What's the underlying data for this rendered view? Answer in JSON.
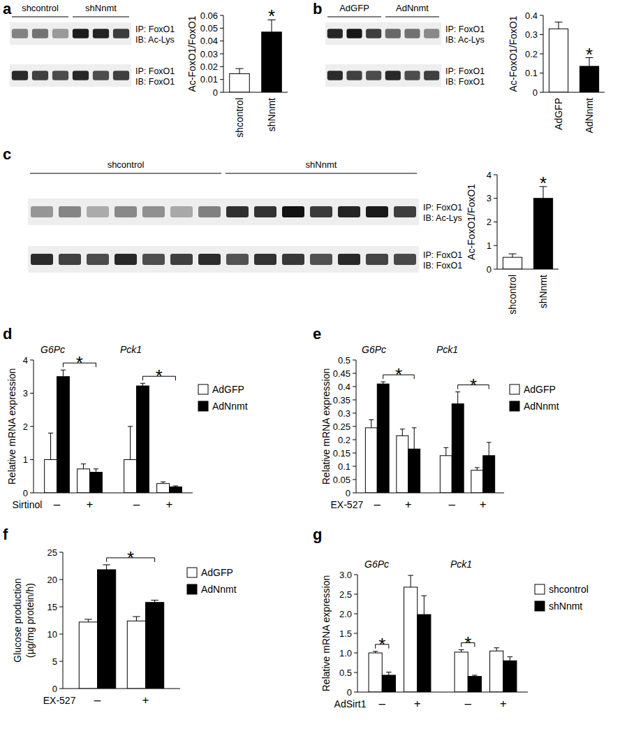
{
  "chart_data": [
    {
      "panel": "a",
      "type": "bar",
      "categories": [
        "shcontrol",
        "shNnmt"
      ],
      "values": [
        0.0145,
        0.047
      ],
      "errors": [
        0.004,
        0.0095
      ],
      "colors": [
        "#ffffff",
        "#000000"
      ],
      "ylim": [
        0,
        0.06
      ],
      "yticks": [
        0,
        0.01,
        0.02,
        0.03,
        0.04,
        0.05,
        0.06
      ],
      "y_label": "Ac-FoxO1/FoxO1",
      "annotations": [
        {
          "text": "*",
          "index": 1
        }
      ],
      "blot": {
        "groups": [
          {
            "label": "shcontrol",
            "lanes": 3
          },
          {
            "label": "shNnmt",
            "lanes": 3
          }
        ],
        "rows": [
          [
            "IP: FoxO1",
            "IB: Ac-Lys"
          ],
          [
            "IP: FoxO1",
            "IB: FoxO1"
          ]
        ]
      }
    },
    {
      "panel": "b",
      "type": "bar",
      "categories": [
        "AdGFP",
        "AdNnmt"
      ],
      "values": [
        0.33,
        0.135
      ],
      "errors": [
        0.035,
        0.045
      ],
      "colors": [
        "#ffffff",
        "#000000"
      ],
      "ylim": [
        0,
        0.4
      ],
      "yticks": [
        0,
        0.1,
        0.2,
        0.3,
        0.4
      ],
      "y_label": "Ac-FoxO1/FoxO1",
      "annotations": [
        {
          "text": "*",
          "index": 1
        }
      ],
      "blot": {
        "groups": [
          {
            "label": "AdGFP",
            "lanes": 3
          },
          {
            "label": "AdNnmt",
            "lanes": 3
          }
        ],
        "rows": [
          [
            "IP: FoxO1",
            "IB: Ac-Lys"
          ],
          [
            "IP: FoxO1",
            "IB: FoxO1"
          ]
        ]
      }
    },
    {
      "panel": "c",
      "type": "bar",
      "categories": [
        "shcontrol",
        "shNnmt"
      ],
      "values": [
        0.5,
        3.0
      ],
      "errors": [
        0.15,
        0.5
      ],
      "colors": [
        "#ffffff",
        "#000000"
      ],
      "ylim": [
        0,
        4
      ],
      "yticks": [
        0,
        1,
        2,
        3,
        4
      ],
      "y_label": "Ac-FoxO1/FoxO1",
      "annotations": [
        {
          "text": "*",
          "index": 1
        }
      ],
      "blot": {
        "groups": [
          {
            "label": "shcontrol",
            "lanes": 7
          },
          {
            "label": "shNnmt",
            "lanes": 7
          }
        ],
        "rows": [
          [
            "IP: FoxO1",
            "IB: Ac-Lys"
          ],
          [
            "IP: FoxO1",
            "IB: FoxO1"
          ]
        ]
      }
    },
    {
      "panel": "d",
      "type": "bar",
      "groups": [
        "G6Pc",
        "Pck1"
      ],
      "categories": [
        "–",
        "+",
        "–",
        "+"
      ],
      "x_label": "Sirtinol",
      "series": [
        {
          "name": "AdGFP",
          "color": "#ffffff",
          "values": [
            1.0,
            0.72,
            1.0,
            0.28
          ],
          "errors": [
            0.8,
            0.15,
            1.0,
            0.05
          ]
        },
        {
          "name": "AdNnmt",
          "color": "#000000",
          "values": [
            3.5,
            0.62,
            3.22,
            0.18
          ],
          "errors": [
            0.2,
            0.1,
            0.08,
            0.03
          ]
        }
      ],
      "ylim": [
        0,
        4
      ],
      "yticks": [
        0,
        1,
        2,
        3,
        4
      ],
      "y_label": "Relative mRNA expression",
      "brackets": [
        {
          "text": "*",
          "series": [
            1,
            1
          ],
          "index": [
            0,
            1
          ]
        },
        {
          "text": "*",
          "series": [
            1,
            1
          ],
          "index": [
            2,
            3
          ]
        }
      ]
    },
    {
      "panel": "e",
      "type": "bar",
      "groups": [
        "G6Pc",
        "Pck1"
      ],
      "categories": [
        "–",
        "+",
        "–",
        "+"
      ],
      "x_label": "EX-527",
      "series": [
        {
          "name": "AdGFP",
          "color": "#ffffff",
          "values": [
            0.245,
            0.215,
            0.14,
            0.085
          ],
          "errors": [
            0.03,
            0.025,
            0.03,
            0.01
          ]
        },
        {
          "name": "AdNnmt",
          "color": "#000000",
          "values": [
            0.41,
            0.165,
            0.335,
            0.14
          ],
          "errors": [
            0.008,
            0.08,
            0.045,
            0.05
          ]
        }
      ],
      "ylim": [
        0,
        0.5
      ],
      "yticks": [
        0,
        0.05,
        0.1,
        0.15,
        0.2,
        0.25,
        0.3,
        0.35,
        0.4,
        0.45,
        0.5
      ],
      "y_label": "Relative mRNA expression",
      "brackets": [
        {
          "text": "*",
          "series": [
            1,
            1
          ],
          "index": [
            0,
            1
          ]
        },
        {
          "text": "*",
          "series": [
            1,
            1
          ],
          "index": [
            2,
            3
          ]
        }
      ]
    },
    {
      "panel": "f",
      "type": "bar",
      "categories": [
        "–",
        "+"
      ],
      "x_label": "EX-527",
      "series": [
        {
          "name": "AdGFP",
          "color": "#ffffff",
          "values": [
            12.2,
            12.4
          ],
          "errors": [
            0.5,
            0.8
          ]
        },
        {
          "name": "AdNnmt",
          "color": "#000000",
          "values": [
            21.8,
            15.8
          ],
          "errors": [
            0.9,
            0.4
          ]
        }
      ],
      "ylim": [
        0,
        25
      ],
      "yticks": [
        0,
        5,
        10,
        15,
        20,
        25
      ],
      "y_label": [
        "Glucose production",
        "(µg/mg protein/h)"
      ],
      "brackets": [
        {
          "text": "*",
          "series": [
            1,
            1
          ],
          "index": [
            0,
            1
          ]
        }
      ]
    },
    {
      "panel": "g",
      "type": "bar",
      "groups": [
        "G6Pc",
        "Pck1"
      ],
      "categories": [
        "–",
        "+",
        "–",
        "+"
      ],
      "x_label": "AdSirt1",
      "series": [
        {
          "name": "shcontrol",
          "color": "#ffffff",
          "values": [
            1.0,
            2.68,
            1.02,
            1.05
          ],
          "errors": [
            0.04,
            0.3,
            0.06,
            0.08
          ]
        },
        {
          "name": "shNnmt",
          "color": "#000000",
          "values": [
            0.43,
            1.98,
            0.4,
            0.8
          ],
          "errors": [
            0.08,
            0.48,
            0.03,
            0.1
          ]
        }
      ],
      "ylim": [
        0,
        3
      ],
      "yticks": [
        0,
        0.5,
        {
          "value": 1,
          "label": "1.0"
        },
        1.5,
        {
          "value": 2,
          "label": "2.0"
        },
        2.5,
        {
          "value": 3,
          "label": "3.0"
        }
      ],
      "y_label": "Relative mRNA expression",
      "brackets": [
        {
          "text": "*",
          "series": [
            0,
            1
          ],
          "index": [
            0,
            0
          ]
        },
        {
          "text": "*",
          "series": [
            0,
            1
          ],
          "index": [
            2,
            2
          ]
        }
      ]
    }
  ]
}
